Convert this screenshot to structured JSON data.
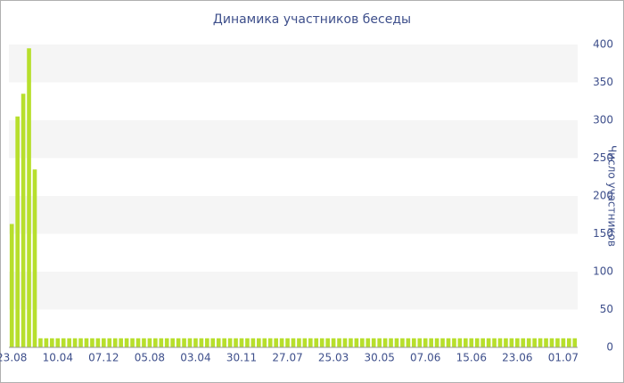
{
  "chart_data": {
    "type": "bar",
    "title": "Динамика участников беседы",
    "y_label": "Число участников",
    "categories": [
      "23.08",
      null,
      null,
      null,
      null,
      null,
      null,
      null,
      "10.04",
      null,
      null,
      null,
      null,
      null,
      null,
      null,
      "07.12",
      null,
      null,
      null,
      null,
      null,
      null,
      null,
      "05.08",
      null,
      null,
      null,
      null,
      null,
      null,
      null,
      "03.04",
      null,
      null,
      null,
      null,
      null,
      null,
      null,
      "30.11",
      null,
      null,
      null,
      null,
      null,
      null,
      null,
      "27.07",
      null,
      null,
      null,
      null,
      null,
      null,
      null,
      "25.03",
      null,
      null,
      null,
      null,
      null,
      null,
      null,
      "30.05",
      null,
      null,
      null,
      null,
      null,
      null,
      null,
      "07.06",
      null,
      null,
      null,
      null,
      null,
      null,
      null,
      "15.06",
      null,
      null,
      null,
      null,
      null,
      null,
      null,
      "23.06",
      null,
      null,
      null,
      null,
      null,
      null,
      null,
      "01.07",
      null,
      null
    ],
    "values": [
      163,
      305,
      335,
      395,
      235,
      12,
      12,
      12,
      12,
      12,
      12,
      12,
      12,
      12,
      12,
      12,
      12,
      12,
      12,
      12,
      12,
      12,
      12,
      12,
      12,
      12,
      12,
      12,
      12,
      12,
      12,
      12,
      12,
      12,
      12,
      12,
      12,
      12,
      12,
      12,
      12,
      12,
      12,
      12,
      12,
      12,
      12,
      12,
      12,
      12,
      12,
      12,
      12,
      12,
      12,
      12,
      12,
      12,
      12,
      12,
      12,
      12,
      12,
      12,
      12,
      12,
      12,
      12,
      12,
      12,
      12,
      12,
      12,
      12,
      12,
      12,
      12,
      12,
      12,
      12,
      12,
      12,
      12,
      12,
      12,
      12,
      12,
      12,
      12,
      12,
      12,
      12,
      12,
      12,
      12,
      12,
      12,
      12,
      12
    ],
    "color": "#b7df2c",
    "ylim": [
      0,
      400
    ],
    "yticks": [
      0,
      50,
      100,
      150,
      200,
      250,
      300,
      350,
      400
    ],
    "y_axis_side": "right",
    "grid": "bands"
  }
}
